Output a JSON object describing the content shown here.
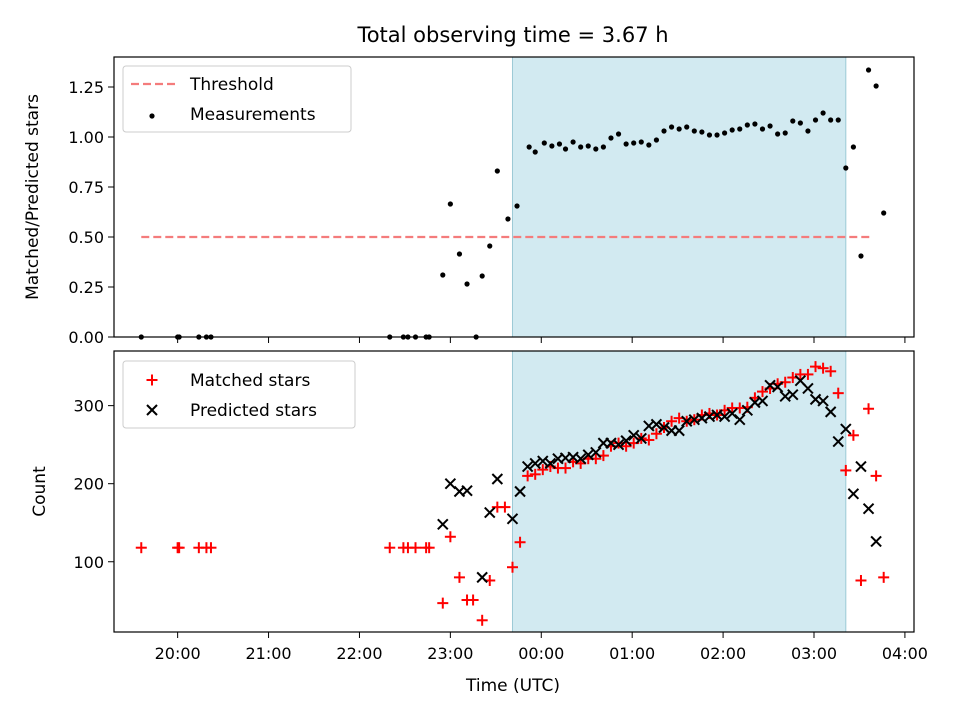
{
  "title": "Total observing time = 3.67 h",
  "xlabel": "Time (UTC)",
  "colors": {
    "threshold": "#f47c7c",
    "measurements": "#000000",
    "matched": "#ff0000",
    "predicted": "#000000",
    "span": "#add8e6"
  },
  "chart_data": [
    {
      "type": "scatter",
      "ylabel": "Matched/Predicted stars",
      "xlim": [
        "19:18",
        "04:06"
      ],
      "ylim": [
        0,
        1.4
      ],
      "yticks": [
        "0.00",
        "0.25",
        "0.50",
        "0.75",
        "1.00",
        "1.25"
      ],
      "highlight_span": [
        "23:41",
        "03:21"
      ],
      "legend_position": "top-left",
      "threshold": {
        "name": "Threshold",
        "value": 0.5,
        "x_range": [
          "19:36",
          "03:37"
        ]
      },
      "series": [
        {
          "name": "Measurements",
          "points": [
            [
              "19:36",
              0
            ],
            [
              "20:00",
              0
            ],
            [
              "20:01",
              0
            ],
            [
              "20:14",
              0
            ],
            [
              "20:19",
              0
            ],
            [
              "20:22",
              0
            ],
            [
              "22:20",
              0
            ],
            [
              "22:29",
              0
            ],
            [
              "22:32",
              0
            ],
            [
              "22:37",
              0
            ],
            [
              "22:44",
              0
            ],
            [
              "22:46",
              0
            ],
            [
              "22:55",
              0.31
            ],
            [
              "23:00",
              0.665
            ],
            [
              "23:06",
              0.415
            ],
            [
              "23:11",
              0.265
            ],
            [
              "23:17",
              0
            ],
            [
              "23:21",
              0.305
            ],
            [
              "23:26",
              0.455
            ],
            [
              "23:31",
              0.83
            ],
            [
              "23:38",
              0.59
            ],
            [
              "23:44",
              0.655
            ],
            [
              "23:52",
              0.95
            ],
            [
              "23:56",
              0.925
            ],
            [
              "00:02",
              0.97
            ],
            [
              "00:07",
              0.955
            ],
            [
              "00:12",
              0.965
            ],
            [
              "00:16",
              0.94
            ],
            [
              "00:21",
              0.975
            ],
            [
              "00:26",
              0.95
            ],
            [
              "00:31",
              0.955
            ],
            [
              "00:36",
              0.94
            ],
            [
              "00:41",
              0.95
            ],
            [
              "00:46",
              0.995
            ],
            [
              "00:51",
              1.015
            ],
            [
              "00:56",
              0.965
            ],
            [
              "01:01",
              0.97
            ],
            [
              "01:06",
              0.975
            ],
            [
              "01:11",
              0.96
            ],
            [
              "01:16",
              0.985
            ],
            [
              "01:21",
              1.03
            ],
            [
              "01:26",
              1.05
            ],
            [
              "01:31",
              1.04
            ],
            [
              "01:36",
              1.05
            ],
            [
              "01:41",
              1.03
            ],
            [
              "01:46",
              1.025
            ],
            [
              "01:51",
              1.01
            ],
            [
              "01:56",
              1.01
            ],
            [
              "02:01",
              1.02
            ],
            [
              "02:06",
              1.035
            ],
            [
              "02:11",
              1.04
            ],
            [
              "02:16",
              1.06
            ],
            [
              "02:21",
              1.065
            ],
            [
              "02:26",
              1.04
            ],
            [
              "02:31",
              1.055
            ],
            [
              "02:36",
              1.015
            ],
            [
              "02:41",
              1.02
            ],
            [
              "02:46",
              1.08
            ],
            [
              "02:51",
              1.07
            ],
            [
              "02:56",
              1.03
            ],
            [
              "03:01",
              1.085
            ],
            [
              "03:06",
              1.12
            ],
            [
              "03:11",
              1.085
            ],
            [
              "03:16",
              1.085
            ],
            [
              "03:21",
              0.845
            ],
            [
              "03:26",
              0.95
            ],
            [
              "03:31",
              0.405
            ],
            [
              "03:36",
              1.335
            ],
            [
              "03:41",
              1.255
            ],
            [
              "03:46",
              0.62
            ]
          ]
        }
      ]
    },
    {
      "type": "scatter",
      "ylabel": "Count",
      "xlim": [
        "19:18",
        "04:06"
      ],
      "ylim": [
        10,
        370
      ],
      "yticks": [
        "100",
        "200",
        "300"
      ],
      "xticks": [
        "20:00",
        "21:00",
        "22:00",
        "23:00",
        "00:00",
        "01:00",
        "02:00",
        "03:00",
        "04:00"
      ],
      "highlight_span": [
        "23:41",
        "03:21"
      ],
      "legend_position": "top-left",
      "series": [
        {
          "name": "Matched stars",
          "marker": "+",
          "points": [
            [
              "19:36",
              118
            ],
            [
              "20:00",
              118
            ],
            [
              "20:01",
              118
            ],
            [
              "20:14",
              118
            ],
            [
              "20:19",
              118
            ],
            [
              "20:22",
              118
            ],
            [
              "22:20",
              118
            ],
            [
              "22:29",
              118
            ],
            [
              "22:32",
              118
            ],
            [
              "22:37",
              118
            ],
            [
              "22:44",
              118
            ],
            [
              "22:46",
              118
            ],
            [
              "22:55",
              47
            ],
            [
              "23:00",
              132
            ],
            [
              "23:06",
              80
            ],
            [
              "23:11",
              51
            ],
            [
              "23:15",
              51
            ],
            [
              "23:21",
              25
            ],
            [
              "23:26",
              76
            ],
            [
              "23:31",
              170
            ],
            [
              "23:36",
              170
            ],
            [
              "23:41",
              93
            ],
            [
              "23:46",
              125
            ],
            [
              "23:51",
              210
            ],
            [
              "23:56",
              212
            ],
            [
              "00:01",
              218
            ],
            [
              "00:06",
              222
            ],
            [
              "00:11",
              220
            ],
            [
              "00:16",
              220
            ],
            [
              "00:21",
              228
            ],
            [
              "00:26",
              226
            ],
            [
              "00:31",
              232
            ],
            [
              "00:36",
              232
            ],
            [
              "00:41",
              236
            ],
            [
              "00:46",
              248
            ],
            [
              "00:51",
              252
            ],
            [
              "00:56",
              248
            ],
            [
              "01:01",
              252
            ],
            [
              "01:06",
              258
            ],
            [
              "01:11",
              256
            ],
            [
              "01:16",
              264
            ],
            [
              "01:21",
              272
            ],
            [
              "01:26",
              280
            ],
            [
              "01:31",
              284
            ],
            [
              "01:36",
              280
            ],
            [
              "01:41",
              282
            ],
            [
              "01:46",
              288
            ],
            [
              "01:51",
              290
            ],
            [
              "01:56",
              288
            ],
            [
              "02:01",
              294
            ],
            [
              "02:06",
              297
            ],
            [
              "02:11",
              297
            ],
            [
              "02:16",
              298
            ],
            [
              "02:21",
              310
            ],
            [
              "02:26",
              318
            ],
            [
              "02:31",
              322
            ],
            [
              "02:36",
              328
            ],
            [
              "02:41",
              330
            ],
            [
              "02:46",
              336
            ],
            [
              "02:51",
              340
            ],
            [
              "02:56",
              340
            ],
            [
              "03:01",
              350
            ],
            [
              "03:06",
              348
            ],
            [
              "03:11",
              344
            ],
            [
              "03:16",
              316
            ],
            [
              "03:21",
              217
            ],
            [
              "03:26",
              262
            ],
            [
              "03:31",
              76
            ],
            [
              "03:36",
              296
            ],
            [
              "03:41",
              210
            ],
            [
              "03:46",
              80
            ]
          ]
        },
        {
          "name": "Predicted stars",
          "marker": "x",
          "points": [
            [
              "22:55",
              148
            ],
            [
              "23:00",
              200
            ],
            [
              "23:06",
              190
            ],
            [
              "23:11",
              191
            ],
            [
              "23:21",
              80
            ],
            [
              "23:26",
              163
            ],
            [
              "23:31",
              206
            ],
            [
              "23:41",
              155
            ],
            [
              "23:46",
              190
            ],
            [
              "23:51",
              222
            ],
            [
              "23:56",
              226
            ],
            [
              "00:01",
              229
            ],
            [
              "00:06",
              226
            ],
            [
              "00:11",
              232
            ],
            [
              "00:16",
              233
            ],
            [
              "00:21",
              234
            ],
            [
              "00:26",
              232
            ],
            [
              "00:31",
              237
            ],
            [
              "00:36",
              240
            ],
            [
              "00:41",
              252
            ],
            [
              "00:46",
              252
            ],
            [
              "00:51",
              250
            ],
            [
              "00:56",
              255
            ],
            [
              "01:01",
              262
            ],
            [
              "01:06",
              258
            ],
            [
              "01:11",
              274
            ],
            [
              "01:16",
              276
            ],
            [
              "01:21",
              272
            ],
            [
              "01:26",
              268
            ],
            [
              "01:31",
              268
            ],
            [
              "01:36",
              280
            ],
            [
              "01:41",
              282
            ],
            [
              "01:46",
              284
            ],
            [
              "01:51",
              286
            ],
            [
              "01:56",
              288
            ],
            [
              "02:01",
              286
            ],
            [
              "02:06",
              290
            ],
            [
              "02:11",
              282
            ],
            [
              "02:16",
              294
            ],
            [
              "02:21",
              304
            ],
            [
              "02:26",
              306
            ],
            [
              "02:31",
              326
            ],
            [
              "02:36",
              324
            ],
            [
              "02:41",
              312
            ],
            [
              "02:46",
              314
            ],
            [
              "02:51",
              332
            ],
            [
              "02:56",
              322
            ],
            [
              "03:01",
              308
            ],
            [
              "03:06",
              306
            ],
            [
              "03:11",
              292
            ],
            [
              "03:16",
              254
            ],
            [
              "03:21",
              270
            ],
            [
              "03:26",
              187
            ],
            [
              "03:31",
              222
            ],
            [
              "03:36",
              168
            ],
            [
              "03:41",
              126
            ]
          ]
        }
      ]
    }
  ]
}
